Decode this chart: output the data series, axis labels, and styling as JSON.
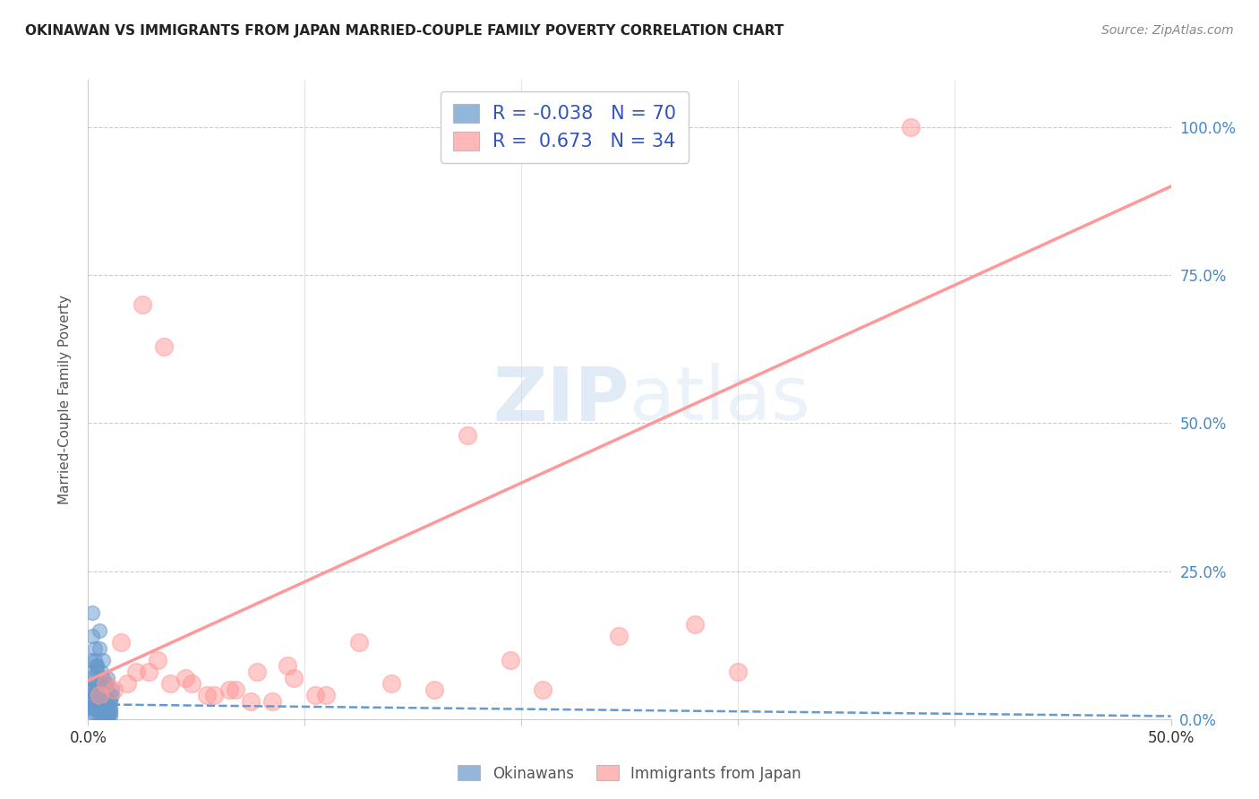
{
  "title": "OKINAWAN VS IMMIGRANTS FROM JAPAN MARRIED-COUPLE FAMILY POVERTY CORRELATION CHART",
  "source": "Source: ZipAtlas.com",
  "ylabel": "Married-Couple Family Poverty",
  "xlim": [
    0.0,
    0.5
  ],
  "ylim": [
    0.0,
    1.08
  ],
  "yticks": [
    0.0,
    0.25,
    0.5,
    0.75,
    1.0
  ],
  "ytick_labels": [
    "0.0%",
    "25.0%",
    "50.0%",
    "75.0%",
    "100.0%"
  ],
  "xticks": [
    0.0,
    0.1,
    0.2,
    0.3,
    0.4,
    0.5
  ],
  "xtick_labels": [
    "0.0%",
    "",
    "",
    "",
    "",
    "50.0%"
  ],
  "blue_color": "#6699CC",
  "pink_color": "#FF9999",
  "blue_R": -0.038,
  "blue_N": 70,
  "pink_R": 0.673,
  "pink_N": 34,
  "legend_label_blue": "Okinawans",
  "legend_label_pink": "Immigrants from Japan",
  "watermark_zip": "ZIP",
  "watermark_atlas": "atlas",
  "background_color": "#ffffff",
  "grid_color": "#cccccc",
  "title_color": "#222222",
  "source_color": "#888888",
  "axis_label_color": "#555555",
  "tick_color_y": "#4488CC",
  "blue_scatter_x": [
    0.002,
    0.003,
    0.004,
    0.005,
    0.006,
    0.007,
    0.008,
    0.009,
    0.01,
    0.011,
    0.002,
    0.003,
    0.004,
    0.005,
    0.006,
    0.007,
    0.008,
    0.009,
    0.01,
    0.011,
    0.001,
    0.002,
    0.003,
    0.004,
    0.005,
    0.006,
    0.007,
    0.008,
    0.009,
    0.01,
    0.001,
    0.002,
    0.003,
    0.004,
    0.005,
    0.006,
    0.007,
    0.008,
    0.009,
    0.01,
    0.001,
    0.002,
    0.003,
    0.004,
    0.005,
    0.006,
    0.007,
    0.008,
    0.009,
    0.01,
    0.001,
    0.002,
    0.003,
    0.004,
    0.005,
    0.006,
    0.007,
    0.008,
    0.009,
    0.01,
    0.001,
    0.002,
    0.003,
    0.004,
    0.005,
    0.006,
    0.007,
    0.008,
    0.009,
    0.01
  ],
  "blue_scatter_y": [
    0.18,
    0.12,
    0.09,
    0.15,
    0.08,
    0.1,
    0.06,
    0.07,
    0.04,
    0.05,
    0.14,
    0.1,
    0.08,
    0.12,
    0.06,
    0.07,
    0.04,
    0.05,
    0.03,
    0.04,
    0.1,
    0.08,
    0.06,
    0.09,
    0.05,
    0.06,
    0.03,
    0.04,
    0.02,
    0.03,
    0.07,
    0.05,
    0.04,
    0.06,
    0.03,
    0.04,
    0.02,
    0.03,
    0.01,
    0.02,
    0.05,
    0.04,
    0.03,
    0.04,
    0.02,
    0.03,
    0.01,
    0.02,
    0.01,
    0.015,
    0.03,
    0.02,
    0.02,
    0.03,
    0.01,
    0.02,
    0.01,
    0.01,
    0.005,
    0.01,
    0.02,
    0.01,
    0.01,
    0.02,
    0.005,
    0.01,
    0.005,
    0.005,
    0.003,
    0.005
  ],
  "pink_scatter_x": [
    0.005,
    0.008,
    0.012,
    0.015,
    0.018,
    0.022,
    0.028,
    0.032,
    0.038,
    0.045,
    0.055,
    0.065,
    0.075,
    0.085,
    0.095,
    0.11,
    0.125,
    0.14,
    0.16,
    0.175,
    0.195,
    0.21,
    0.245,
    0.28,
    0.025,
    0.035,
    0.048,
    0.058,
    0.068,
    0.078,
    0.092,
    0.105,
    0.38,
    0.3
  ],
  "pink_scatter_y": [
    0.04,
    0.06,
    0.05,
    0.13,
    0.06,
    0.08,
    0.08,
    0.1,
    0.06,
    0.07,
    0.04,
    0.05,
    0.03,
    0.03,
    0.07,
    0.04,
    0.13,
    0.06,
    0.05,
    0.48,
    0.1,
    0.05,
    0.14,
    0.16,
    0.7,
    0.63,
    0.06,
    0.04,
    0.05,
    0.08,
    0.09,
    0.04,
    1.0,
    0.08
  ],
  "blue_trend_x": [
    0.0,
    0.5
  ],
  "blue_trend_y": [
    0.025,
    0.005
  ],
  "pink_trend_x": [
    0.0,
    0.5
  ],
  "pink_trend_y": [
    0.065,
    0.9
  ]
}
